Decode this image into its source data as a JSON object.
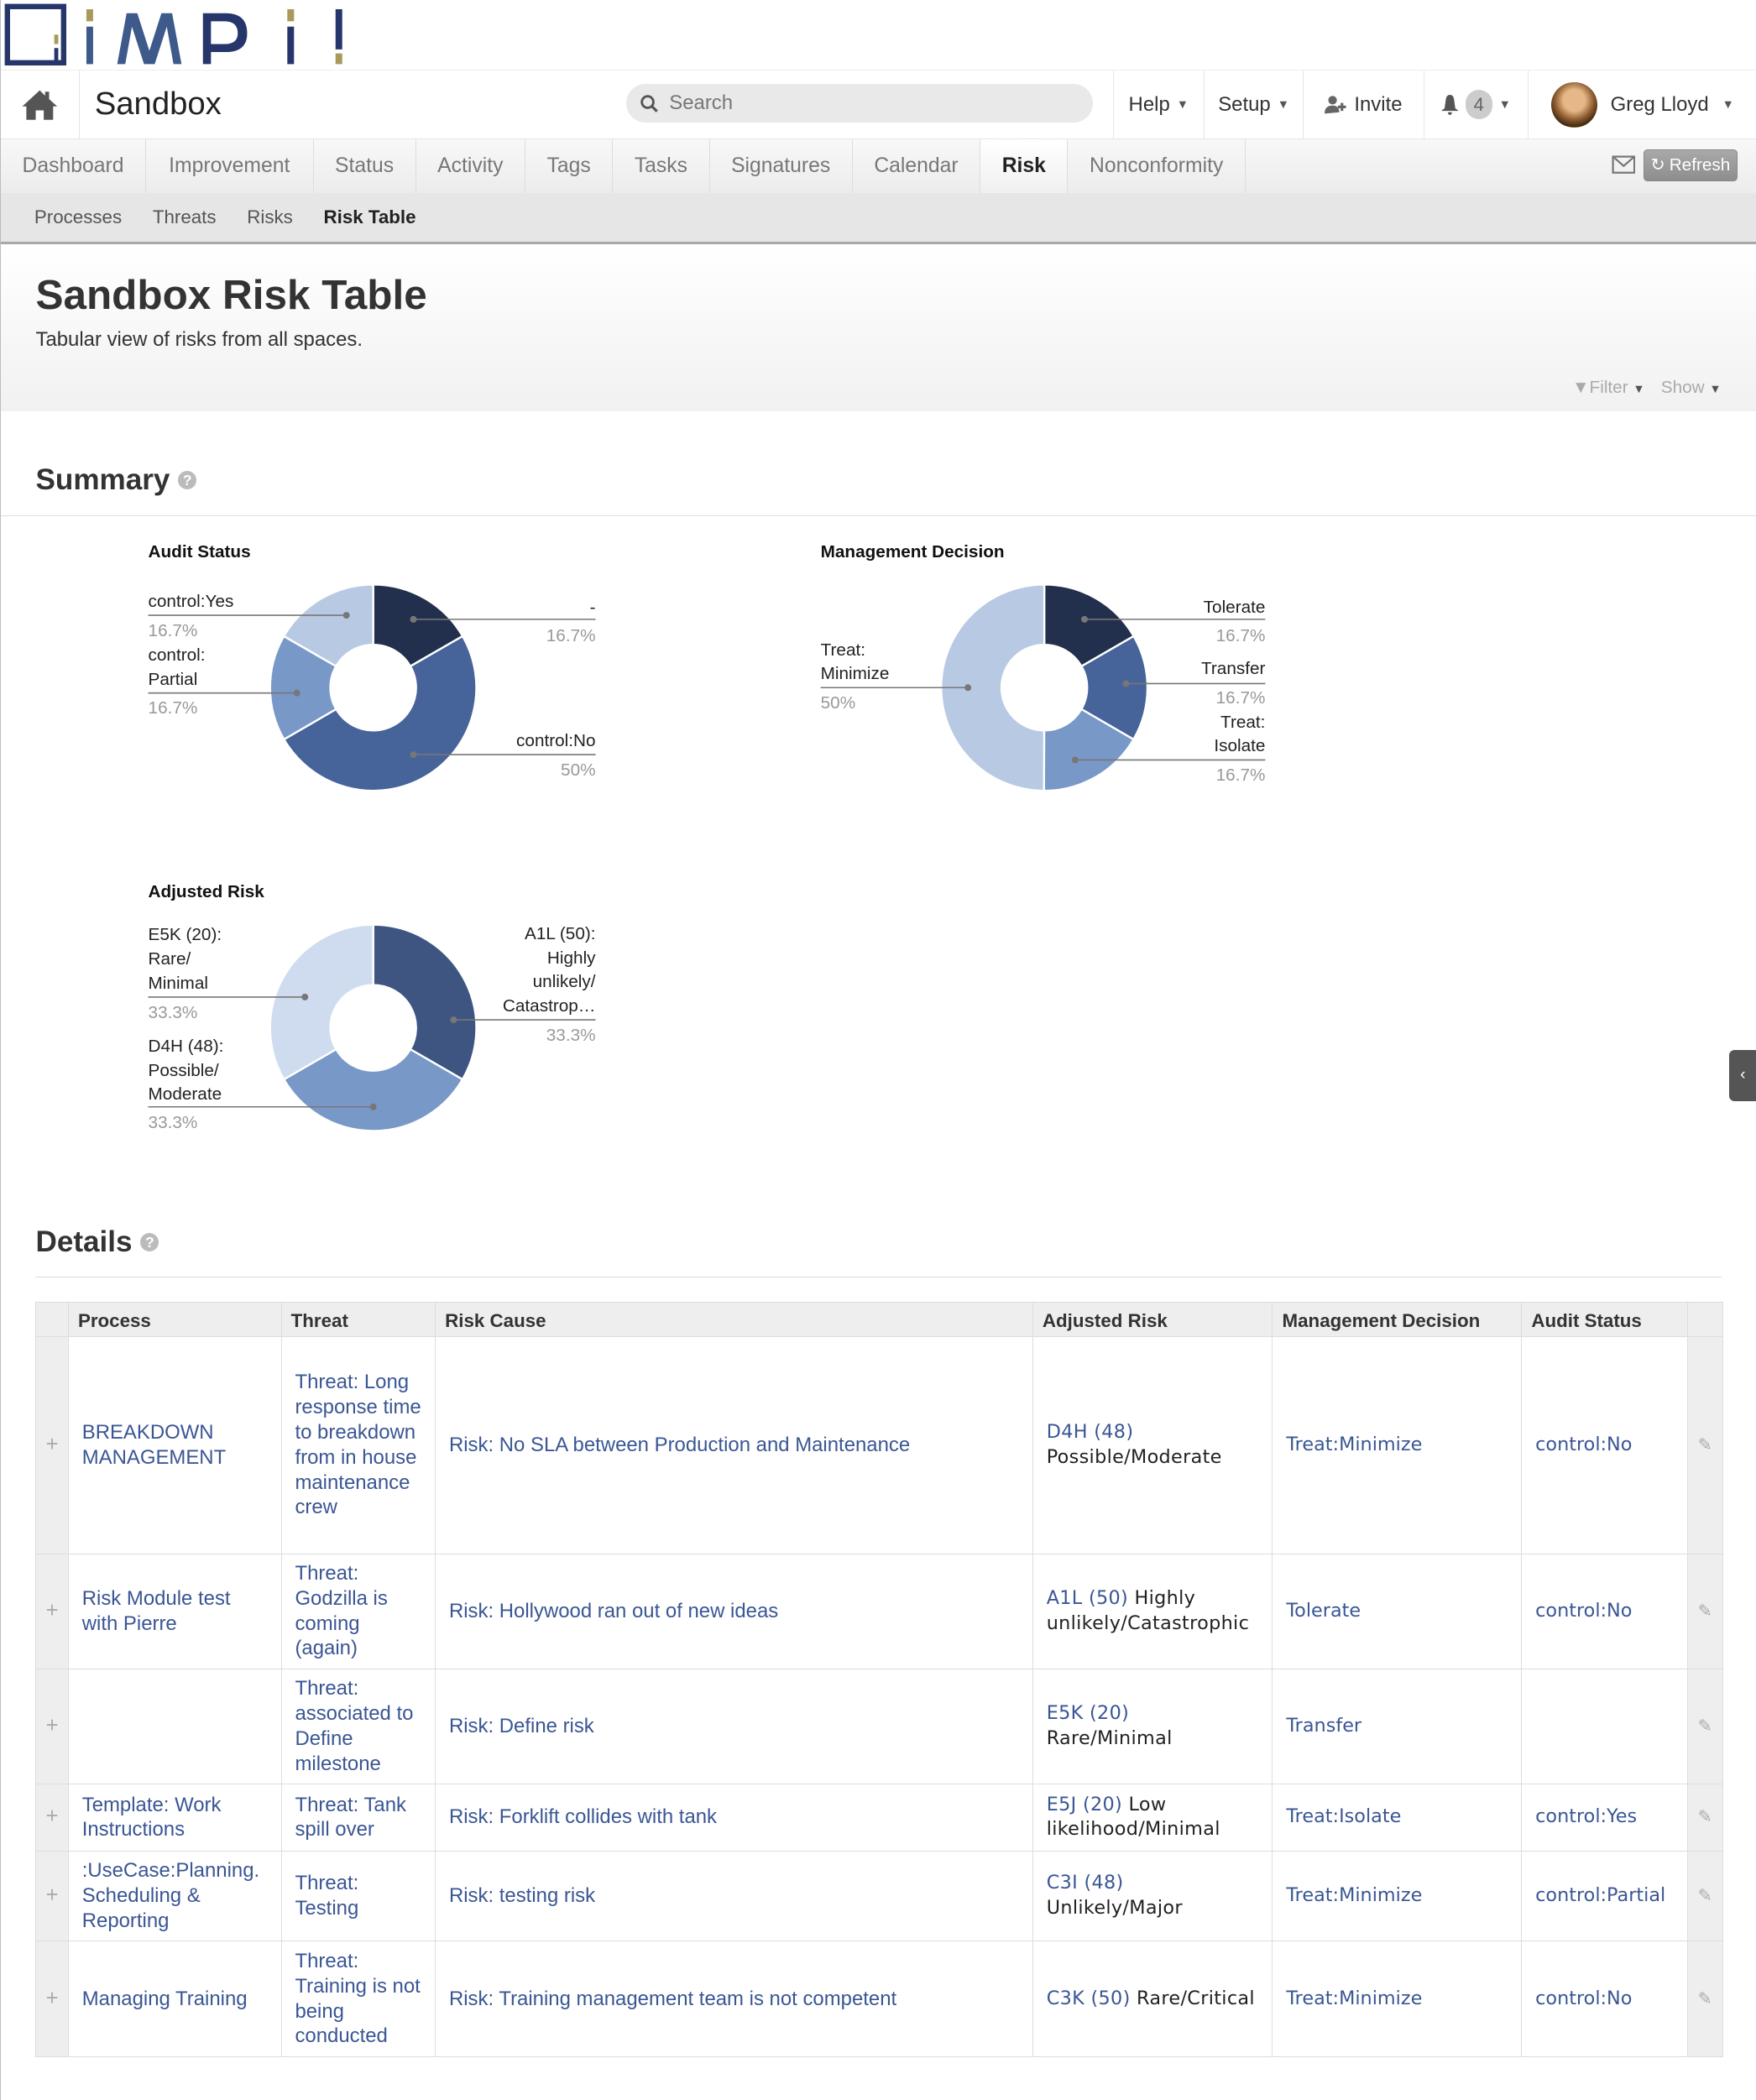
{
  "logo": {
    "text": "iMPi!",
    "colors": {
      "blue": "#3d5a8a",
      "gold": "#a89a5a"
    }
  },
  "nav": {
    "space": "Sandbox",
    "search_placeholder": "Search",
    "help": "Help",
    "setup": "Setup",
    "invite": "Invite",
    "notifications": "4",
    "user": "Greg Lloyd"
  },
  "tabs": [
    "Dashboard",
    "Improvement",
    "Status",
    "Activity",
    "Tags",
    "Tasks",
    "Signatures",
    "Calendar",
    "Risk",
    "Nonconformity"
  ],
  "active_tab": "Risk",
  "refresh": "Refresh",
  "subnav": [
    "Processes",
    "Threats",
    "Risks",
    "Risk Table"
  ],
  "page": {
    "title": "Sandbox Risk Table",
    "subtitle": "Tabular view of risks from all spaces.",
    "filter": "Filter",
    "show": "Show"
  },
  "summary": {
    "heading": "Summary",
    "help": "?"
  },
  "details": {
    "heading": "Details",
    "help": "?"
  },
  "chart_data": [
    {
      "type": "pie",
      "donut": true,
      "title": "Audit Status",
      "slices": [
        {
          "label": "-",
          "value": 16.7,
          "pct": "16.7%",
          "color": "#23304d"
        },
        {
          "label": "control:No",
          "value": 50,
          "pct": "50%",
          "color": "#46639a"
        },
        {
          "label": "control: Partial",
          "value": 16.7,
          "pct": "16.7%",
          "color": "#7898c8"
        },
        {
          "label": "control:Yes",
          "value": 16.7,
          "pct": "16.7%",
          "color": "#b8c9e4"
        }
      ]
    },
    {
      "type": "pie",
      "donut": true,
      "title": "Management Decision",
      "slices": [
        {
          "label": "Tolerate",
          "value": 16.7,
          "pct": "16.7%",
          "color": "#23304d"
        },
        {
          "label": "Transfer",
          "value": 16.7,
          "pct": "16.7%",
          "color": "#46639a"
        },
        {
          "label": "Treat: Isolate",
          "value": 16.7,
          "pct": "16.7%",
          "color": "#7898c8"
        },
        {
          "label": "Treat: Minimize",
          "value": 50,
          "pct": "50%",
          "color": "#b8c9e4"
        }
      ]
    },
    {
      "type": "pie",
      "donut": true,
      "title": "Adjusted Risk",
      "slices": [
        {
          "label": "A1L (50): Highly unlikely/ Catastrop…",
          "value": 33.3,
          "pct": "33.3%",
          "color": "#3d5580"
        },
        {
          "label": "D4H (48): Possible/ Moderate",
          "value": 33.3,
          "pct": "33.3%",
          "color": "#7898c8"
        },
        {
          "label": "E5K (20): Rare/ Minimal",
          "value": 33.3,
          "pct": "33.3%",
          "color": "#cfdbee"
        }
      ]
    }
  ],
  "table": {
    "columns": [
      "Process",
      "Threat",
      "Risk Cause",
      "Adjusted Risk",
      "Management Decision",
      "Audit Status"
    ],
    "rows": [
      {
        "process": "BREAKDOWN MANAGEMENT",
        "threat": "Threat: Long response time to breakdown from in house maintenance crew",
        "cause": "Risk: No SLA between Production and Maintenance",
        "risk_code": "D4H (48)",
        "risk_desc": "Possible/Moderate",
        "decision": "Treat:Minimize",
        "audit": "control:No"
      },
      {
        "process": "Risk Module test with Pierre",
        "threat": "Threat: Godzilla is coming (again)",
        "cause": "Risk: Hollywood ran out of new ideas",
        "risk_code": "A1L (50)",
        "risk_desc": "Highly unlikely/Catastrophic",
        "decision": "Tolerate",
        "audit": "control:No"
      },
      {
        "process": "",
        "threat": "Threat: associated to Define milestone",
        "cause": "Risk: Define risk",
        "risk_code": "E5K (20)",
        "risk_desc": "Rare/Minimal",
        "decision": "Transfer",
        "audit": ""
      },
      {
        "process": "Template: Work Instructions",
        "threat": "Threat: Tank spill over",
        "cause": "Risk: Forklift collides with tank",
        "risk_code": "E5J (20)",
        "risk_desc": "Low likelihood/Minimal",
        "decision": "Treat:Isolate",
        "audit": "control:Yes"
      },
      {
        "process": ":UseCase:Planning. Scheduling & Reporting",
        "threat": "Threat: Testing",
        "cause": "Risk: testing risk",
        "risk_code": "C3I (48)",
        "risk_desc": "Unlikely/Major",
        "decision": "Treat:Minimize",
        "audit": "control:Partial"
      },
      {
        "process": "Managing Training",
        "threat": "Threat: Training is not being conducted",
        "cause": "Risk: Training management team is not competent",
        "risk_code": "C3K (50)",
        "risk_desc": "Rare/Critical",
        "decision": "Treat:Minimize",
        "audit": "control:No"
      }
    ]
  }
}
